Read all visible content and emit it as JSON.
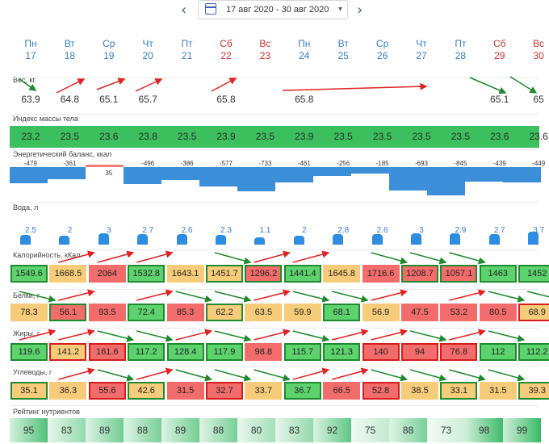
{
  "header": {
    "date_range": "17 авг 2020 - 30 авг 2020",
    "prev_icon": "chevron-left-icon",
    "next_icon": "chevron-right-icon",
    "calendar_icon": "calendar-icon",
    "dropdown_icon": "chevron-down-icon"
  },
  "days": [
    {
      "name": "Пн",
      "num": "17",
      "weekend": false
    },
    {
      "name": "Вт",
      "num": "18",
      "weekend": false
    },
    {
      "name": "Ср",
      "num": "19",
      "weekend": false
    },
    {
      "name": "Чт",
      "num": "20",
      "weekend": false
    },
    {
      "name": "Пт",
      "num": "21",
      "weekend": false
    },
    {
      "name": "Сб",
      "num": "22",
      "weekend": true
    },
    {
      "name": "Вс",
      "num": "23",
      "weekend": true
    },
    {
      "name": "Пн",
      "num": "24",
      "weekend": false
    },
    {
      "name": "Вт",
      "num": "25",
      "weekend": false
    },
    {
      "name": "Ср",
      "num": "26",
      "weekend": false
    },
    {
      "name": "Чт",
      "num": "27",
      "weekend": false
    },
    {
      "name": "Пт",
      "num": "28",
      "weekend": false
    },
    {
      "name": "Сб",
      "num": "29",
      "weekend": true
    },
    {
      "name": "Вс",
      "num": "30",
      "weekend": true
    }
  ],
  "colors": {
    "weekday": "#3a7fc1",
    "weekend": "#d03030",
    "green": "#5dd36e",
    "yellow": "#f6cc7a",
    "red": "#f36c6c",
    "water": "#2d8de0",
    "energy": "#3b8ed8"
  },
  "sections": {
    "weight": "Вес, кг.",
    "bmi": "Индекс массы тела",
    "energy": "Энергетический баланс, ккал",
    "water": "Вода, л",
    "calories": "Калорийность, кКал",
    "protein": "Белки, г",
    "fat": "Жиры, г",
    "carbs": "Углеводы, г",
    "rating": "Рейтинг нутриентов"
  },
  "weight": [
    "63.9",
    "64.8",
    "65.1",
    "65.7",
    "",
    "65.8",
    "",
    "65.8",
    "",
    "",
    "",
    "",
    "65.1",
    "65"
  ],
  "bmi": [
    "23.2",
    "23.5",
    "23.6",
    "23.8",
    "23.5",
    "23.9",
    "23.5",
    "23.9",
    "23.5",
    "23.5",
    "23.5",
    "23.5",
    "23.6",
    "23.6"
  ],
  "energy": [
    {
      "label": "-479",
      "value": -479
    },
    {
      "label": "-361",
      "value": -361
    },
    {
      "label": "35",
      "value": 35
    },
    {
      "label": "-496",
      "value": -496
    },
    {
      "label": "-386",
      "value": -386
    },
    {
      "label": "-577",
      "value": -577
    },
    {
      "label": "-733",
      "value": -733
    },
    {
      "label": "-461",
      "value": -461
    },
    {
      "label": "-256",
      "value": -256
    },
    {
      "label": "-185",
      "value": -185
    },
    {
      "label": "-693",
      "value": -693
    },
    {
      "label": "-845",
      "value": -845
    },
    {
      "label": "-439",
      "value": -439
    },
    {
      "label": "-449",
      "value": -449
    }
  ],
  "water": [
    {
      "label": "2.5",
      "value": 2.5
    },
    {
      "label": "2",
      "value": 2
    },
    {
      "label": "3",
      "value": 3
    },
    {
      "label": "2.7",
      "value": 2.7
    },
    {
      "label": "2.6",
      "value": 2.6
    },
    {
      "label": "2.3",
      "value": 2.3
    },
    {
      "label": "1.1",
      "value": 1.1
    },
    {
      "label": "2",
      "value": 2
    },
    {
      "label": "2.8",
      "value": 2.8
    },
    {
      "label": "2.6",
      "value": 2.6
    },
    {
      "label": "3",
      "value": 3
    },
    {
      "label": "2.9",
      "value": 2.9
    },
    {
      "label": "2.7",
      "value": 2.7
    },
    {
      "label": "3.7",
      "value": 3.7
    }
  ],
  "calories": [
    {
      "v": "1549.6",
      "c": "grn",
      "b": "g"
    },
    {
      "v": "1668.5",
      "c": "yel",
      "b": ""
    },
    {
      "v": "2064",
      "c": "red",
      "b": ""
    },
    {
      "v": "1532.8",
      "c": "grn",
      "b": "g"
    },
    {
      "v": "1643.1",
      "c": "yel",
      "b": ""
    },
    {
      "v": "1451.7",
      "c": "yel",
      "b": "g"
    },
    {
      "v": "1296.2",
      "c": "red",
      "b": "g"
    },
    {
      "v": "1441.4",
      "c": "grn",
      "b": "g"
    },
    {
      "v": "1645.8",
      "c": "yel",
      "b": ""
    },
    {
      "v": "1716.6",
      "c": "red",
      "b": ""
    },
    {
      "v": "1208.7",
      "c": "red",
      "b": "g"
    },
    {
      "v": "1057.1",
      "c": "red",
      "b": "g"
    },
    {
      "v": "1463",
      "c": "grn",
      "b": "g"
    },
    {
      "v": "1452",
      "c": "grn",
      "b": "g"
    }
  ],
  "protein": [
    {
      "v": "78.3",
      "c": "yel",
      "b": ""
    },
    {
      "v": "56.1",
      "c": "red",
      "b": "g"
    },
    {
      "v": "93.5",
      "c": "red",
      "b": ""
    },
    {
      "v": "72.4",
      "c": "grn",
      "b": "g"
    },
    {
      "v": "85.3",
      "c": "red",
      "b": ""
    },
    {
      "v": "62.2",
      "c": "yel",
      "b": "g"
    },
    {
      "v": "63.5",
      "c": "yel",
      "b": ""
    },
    {
      "v": "59.9",
      "c": "yel",
      "b": ""
    },
    {
      "v": "68.1",
      "c": "grn",
      "b": "g"
    },
    {
      "v": "56.9",
      "c": "yel",
      "b": ""
    },
    {
      "v": "47.5",
      "c": "red",
      "b": ""
    },
    {
      "v": "53.2",
      "c": "red",
      "b": ""
    },
    {
      "v": "80.5",
      "c": "red",
      "b": ""
    },
    {
      "v": "68.9",
      "c": "yel",
      "b": "r"
    }
  ],
  "fat": [
    {
      "v": "119.6",
      "c": "grn",
      "b": "g"
    },
    {
      "v": "141.2",
      "c": "yel",
      "b": "r"
    },
    {
      "v": "161.6",
      "c": "red",
      "b": "r"
    },
    {
      "v": "117.2",
      "c": "grn",
      "b": "g"
    },
    {
      "v": "128.4",
      "c": "grn",
      "b": "g"
    },
    {
      "v": "117.9",
      "c": "grn",
      "b": "g"
    },
    {
      "v": "98.8",
      "c": "red",
      "b": ""
    },
    {
      "v": "115.7",
      "c": "grn",
      "b": "g"
    },
    {
      "v": "121.3",
      "c": "grn",
      "b": "g"
    },
    {
      "v": "140",
      "c": "red",
      "b": "r"
    },
    {
      "v": "94",
      "c": "red",
      "b": "r"
    },
    {
      "v": "76.8",
      "c": "red",
      "b": "r"
    },
    {
      "v": "112",
      "c": "grn",
      "b": "g"
    },
    {
      "v": "112.2",
      "c": "grn",
      "b": "g"
    }
  ],
  "carbs": [
    {
      "v": "35.1",
      "c": "yel",
      "b": "g"
    },
    {
      "v": "36.3",
      "c": "yel",
      "b": ""
    },
    {
      "v": "55.6",
      "c": "red",
      "b": "r"
    },
    {
      "v": "42.6",
      "c": "yel",
      "b": "g"
    },
    {
      "v": "31.5",
      "c": "red",
      "b": ""
    },
    {
      "v": "32.7",
      "c": "red",
      "b": "r"
    },
    {
      "v": "33.7",
      "c": "yel",
      "b": ""
    },
    {
      "v": "36.7",
      "c": "grn",
      "b": "g"
    },
    {
      "v": "66.5",
      "c": "red",
      "b": ""
    },
    {
      "v": "52.8",
      "c": "red",
      "b": "r"
    },
    {
      "v": "38.5",
      "c": "yel",
      "b": ""
    },
    {
      "v": "33.1",
      "c": "yel",
      "b": "g"
    },
    {
      "v": "31.5",
      "c": "yel",
      "b": ""
    },
    {
      "v": "39.3",
      "c": "yel",
      "b": "g"
    }
  ],
  "rating": [
    {
      "label": "95",
      "value": 95
    },
    {
      "label": "83",
      "value": 83
    },
    {
      "label": "89",
      "value": 89
    },
    {
      "label": "88",
      "value": 88
    },
    {
      "label": "89",
      "value": 89
    },
    {
      "label": "88",
      "value": 88
    },
    {
      "label": "80",
      "value": 80
    },
    {
      "label": "83",
      "value": 83
    },
    {
      "label": "92",
      "value": 92
    },
    {
      "label": "75",
      "value": 75
    },
    {
      "label": "88",
      "value": 88
    },
    {
      "label": "73",
      "value": 73
    },
    {
      "label": "98",
      "value": 98
    },
    {
      "label": "99",
      "value": 99
    }
  ]
}
